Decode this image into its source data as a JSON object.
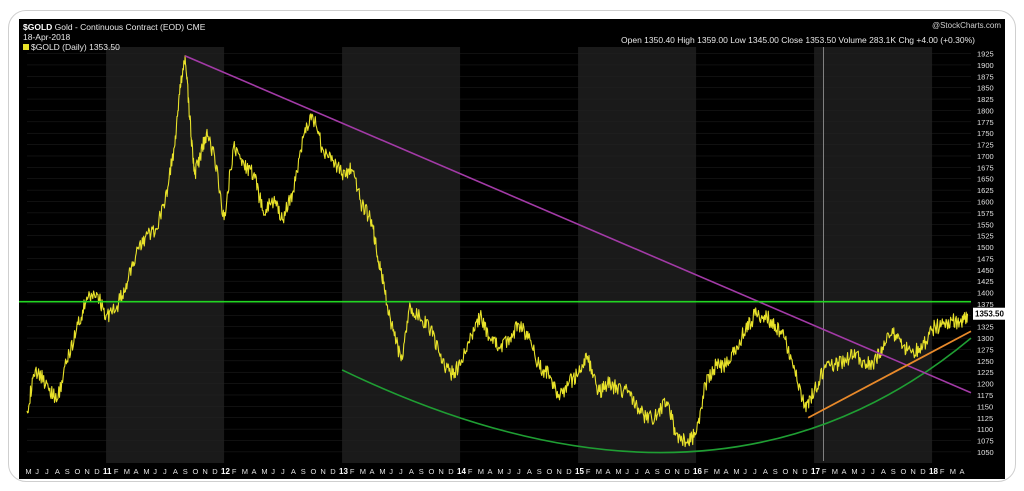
{
  "header": {
    "symbol": "$GOLD",
    "name": "Gold - Continuous Contract (EOD)",
    "exchange": "CME",
    "date": "18-Apr-2018",
    "legend": "$GOLD (Daily) 1353.50",
    "logo": "@StockCharts.com",
    "stats": "Open 1350.40  High 1359.00  Low 1345.00  Close 1353.50  Volume 283.1K  Chg +4.00 (+0.30%)"
  },
  "colors": {
    "background": "#000000",
    "price": "#e8e22a",
    "downtrend": "#a23aa6",
    "resistance": "#22d522",
    "uptrend": "#e8892a",
    "support_curve": "#1f9e33",
    "band_dark": "#000000",
    "band_light": "#1a1a1a"
  },
  "chart_data": {
    "type": "line",
    "title": "Gold - Continuous Contract (EOD)",
    "series_name": "$GOLD (Daily)",
    "y_axis": {
      "min": 1030,
      "max": 1935,
      "ticks": [
        1050,
        1075,
        1100,
        1125,
        1150,
        1175,
        1200,
        1225,
        1250,
        1275,
        1300,
        1325,
        1350,
        1375,
        1400,
        1425,
        1450,
        1475,
        1500,
        1525,
        1550,
        1575,
        1600,
        1625,
        1650,
        1675,
        1700,
        1725,
        1750,
        1775,
        1800,
        1825,
        1850,
        1875,
        1900,
        1925
      ],
      "position": "right"
    },
    "x_axis": {
      "start": 2010.33,
      "end": 2018.33,
      "years": [
        "11",
        "12",
        "13",
        "14",
        "15",
        "16",
        "17",
        "18"
      ],
      "month_letters": [
        "J",
        "F",
        "M",
        "A",
        "M",
        "J",
        "J",
        "A",
        "S",
        "O",
        "N",
        "D"
      ]
    },
    "last_value": "1353.50",
    "x": [
      2010.33,
      2010.4,
      2010.5,
      2010.58,
      2010.67,
      2010.75,
      2010.83,
      2010.92,
      2011.0,
      2011.08,
      2011.17,
      2011.25,
      2011.33,
      2011.42,
      2011.5,
      2011.58,
      2011.63,
      2011.67,
      2011.71,
      2011.75,
      2011.79,
      2011.85,
      2011.92,
      2012.0,
      2012.08,
      2012.17,
      2012.25,
      2012.33,
      2012.42,
      2012.5,
      2012.58,
      2012.67,
      2012.75,
      2012.83,
      2012.92,
      2013.0,
      2013.08,
      2013.17,
      2013.25,
      2013.3,
      2013.35,
      2013.42,
      2013.5,
      2013.58,
      2013.67,
      2013.75,
      2013.83,
      2013.92,
      2014.0,
      2014.08,
      2014.17,
      2014.25,
      2014.33,
      2014.42,
      2014.5,
      2014.58,
      2014.67,
      2014.75,
      2014.83,
      2014.92,
      2015.0,
      2015.08,
      2015.17,
      2015.25,
      2015.33,
      2015.42,
      2015.5,
      2015.58,
      2015.67,
      2015.75,
      2015.83,
      2015.92,
      2016.0,
      2016.08,
      2016.17,
      2016.25,
      2016.33,
      2016.42,
      2016.5,
      2016.58,
      2016.67,
      2016.75,
      2016.83,
      2016.92,
      2017.0,
      2017.08,
      2017.17,
      2017.25,
      2017.33,
      2017.42,
      2017.5,
      2017.58,
      2017.67,
      2017.75,
      2017.83,
      2017.92,
      2018.0,
      2018.08,
      2018.17,
      2018.25,
      2018.3
    ],
    "values": [
      1140,
      1230,
      1200,
      1160,
      1250,
      1320,
      1380,
      1400,
      1350,
      1360,
      1420,
      1480,
      1520,
      1540,
      1600,
      1720,
      1850,
      1920,
      1780,
      1660,
      1690,
      1750,
      1700,
      1560,
      1720,
      1680,
      1660,
      1580,
      1600,
      1560,
      1620,
      1740,
      1790,
      1720,
      1690,
      1660,
      1670,
      1590,
      1560,
      1480,
      1420,
      1330,
      1250,
      1370,
      1340,
      1320,
      1260,
      1220,
      1240,
      1290,
      1350,
      1300,
      1280,
      1300,
      1330,
      1300,
      1240,
      1220,
      1170,
      1200,
      1220,
      1260,
      1180,
      1200,
      1190,
      1180,
      1150,
      1120,
      1130,
      1160,
      1090,
      1070,
      1090,
      1200,
      1240,
      1240,
      1270,
      1320,
      1350,
      1350,
      1330,
      1300,
      1240,
      1150,
      1180,
      1230,
      1240,
      1250,
      1260,
      1250,
      1240,
      1280,
      1310,
      1280,
      1270,
      1280,
      1320,
      1330,
      1340,
      1330,
      1353.5
    ],
    "annotations": [
      {
        "type": "downtrend",
        "from": [
          2011.67,
          1920
        ],
        "to": [
          2018.33,
          1180
        ]
      },
      {
        "type": "horizontal",
        "value": 1380
      },
      {
        "type": "uptrend",
        "from": [
          2016.95,
          1125
        ],
        "to": [
          2018.33,
          1315
        ]
      },
      {
        "type": "support-curve",
        "from": [
          2013.0,
          1230
        ],
        "mid": [
          2015.92,
          1050
        ],
        "to": [
          2018.33,
          1300
        ]
      }
    ],
    "cursor_x": 2017.08
  }
}
